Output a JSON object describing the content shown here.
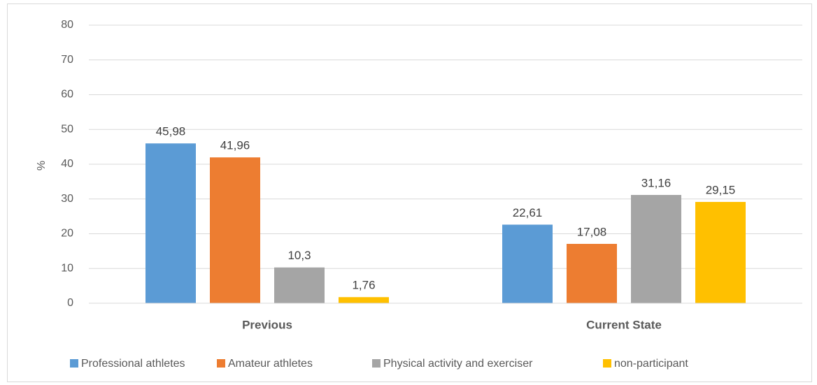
{
  "chart_data": {
    "type": "bar",
    "y_label": "%",
    "categories": [
      "Previous",
      "Current State"
    ],
    "series": [
      {
        "name": "Professional athletes",
        "color": "#5b9bd5",
        "values": [
          45.98,
          22.61
        ],
        "value_labels": [
          "45,98",
          "22,61"
        ]
      },
      {
        "name": "Amateur athletes",
        "color": "#ed7d31",
        "values": [
          41.96,
          17.08
        ],
        "value_labels": [
          "41,96",
          "17,08"
        ]
      },
      {
        "name": "Physical activity and exerciser",
        "color": "#a5a5a5",
        "values": [
          10.3,
          31.16
        ],
        "value_labels": [
          "10,3",
          "31,16"
        ]
      },
      {
        "name": "non-participant",
        "color": "#ffc000",
        "values": [
          1.76,
          29.15
        ],
        "value_labels": [
          "1,76",
          "29,15"
        ]
      }
    ],
    "ylim": [
      0,
      80
    ],
    "yticks": [
      0,
      10,
      20,
      30,
      40,
      50,
      60,
      70,
      80
    ],
    "grid": true,
    "legend": "bottom"
  }
}
